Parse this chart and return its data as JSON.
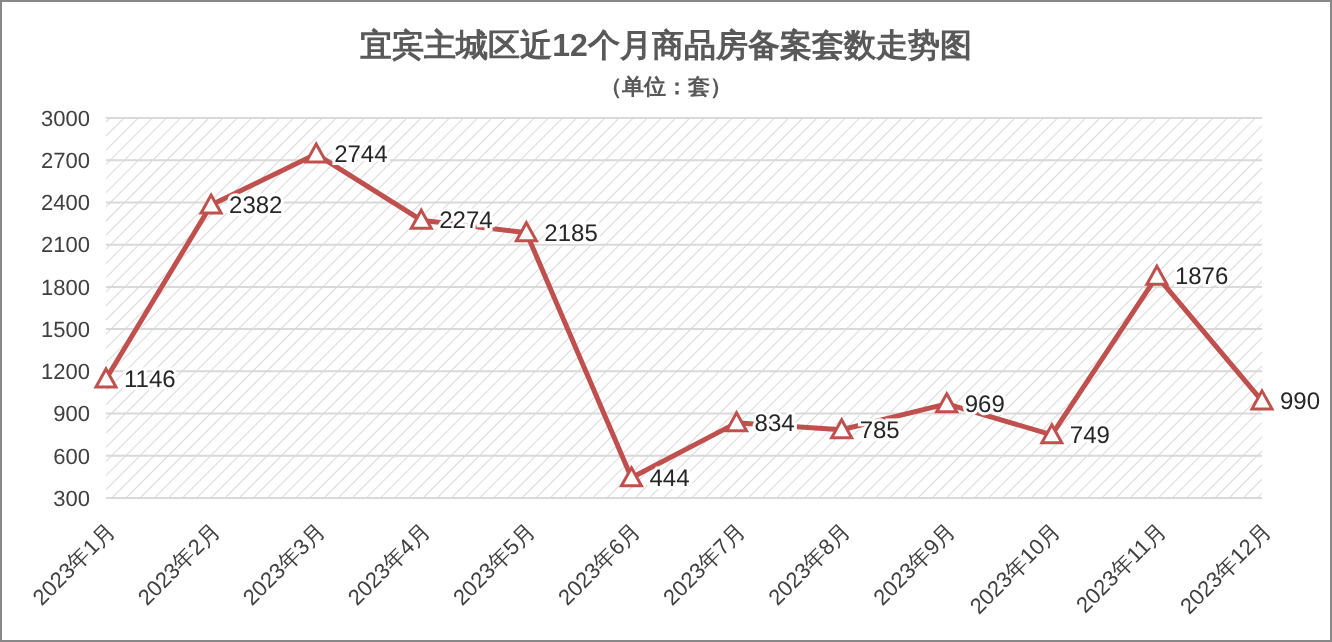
{
  "chart_data": {
    "type": "line",
    "title": "宜宾主城区近12个月商品房备案套数走势图",
    "subtitle": "（单位：套）",
    "categories": [
      "2023年1月",
      "2023年2月",
      "2023年3月",
      "2023年4月",
      "2023年5月",
      "2023年6月",
      "2023年7月",
      "2023年8月",
      "2023年9月",
      "2023年10月",
      "2023年11月",
      "2023年12月"
    ],
    "series": [
      {
        "color": "#c0504d",
        "values": [
          1146,
          2382,
          2744,
          2274,
          2185,
          444,
          834,
          785,
          969,
          749,
          1876,
          990
        ]
      }
    ],
    "ylim": [
      300,
      3000
    ],
    "yticks": [
      300,
      600,
      900,
      1200,
      1500,
      1800,
      2100,
      2400,
      2700,
      3000
    ],
    "grid": "y",
    "marker": "triangle",
    "line_style": "solid",
    "data_labels": true
  }
}
